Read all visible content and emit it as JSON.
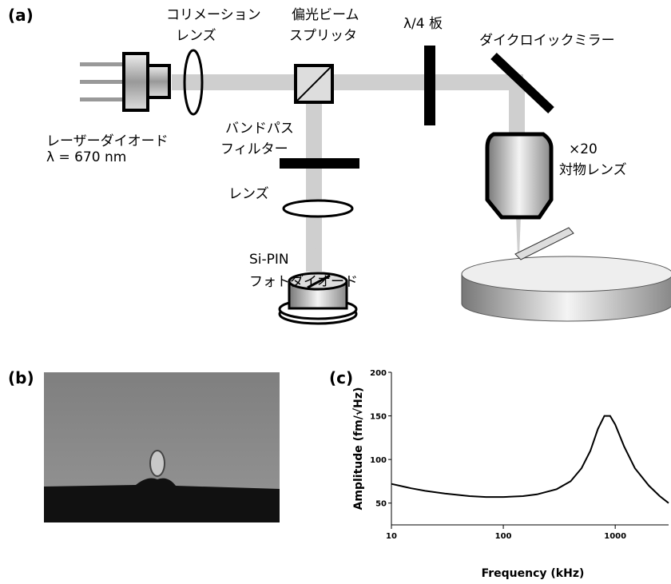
{
  "panels": {
    "a": "(a)",
    "b": "(b)",
    "c": "(c)"
  },
  "diagram": {
    "labels": {
      "collimation_lens": [
        "コリメーション",
        "レンズ"
      ],
      "polarizing_beam_splitter": [
        "偏光ビーム",
        "スプリッタ"
      ],
      "quarter_wave_plate": "λ/4 板",
      "dichroic_mirror": "ダイクロイックミラー",
      "laser_diode": [
        "レーザーダイオード",
        "λ = 670 nm"
      ],
      "bandpass_filter": [
        "バンドパス",
        "フィルター"
      ],
      "lens": "レンズ",
      "objective": [
        "×20",
        "対物レンズ"
      ],
      "photodiode": [
        "Si-PIN",
        "フォトダイオード"
      ]
    }
  },
  "chart_data": {
    "type": "line",
    "x_label": "Frequency (kHz)",
    "y_label": "Amplitude (fm/√Hz)",
    "x": [
      10,
      15,
      20,
      30,
      50,
      70,
      100,
      150,
      200,
      300,
      400,
      500,
      600,
      700,
      800,
      900,
      1000,
      1200,
      1500,
      2000,
      2500,
      3000
    ],
    "values": [
      72,
      67,
      64,
      61,
      58,
      57,
      57,
      58,
      60,
      66,
      75,
      90,
      110,
      135,
      150,
      150,
      140,
      115,
      90,
      70,
      58,
      50
    ],
    "color": "#000000",
    "x_log": true,
    "xlim": [
      10,
      3000
    ],
    "ylim": [
      25,
      200
    ],
    "xticks": [
      10,
      100,
      1000
    ],
    "yticks": [
      50,
      100,
      150,
      200
    ]
  }
}
